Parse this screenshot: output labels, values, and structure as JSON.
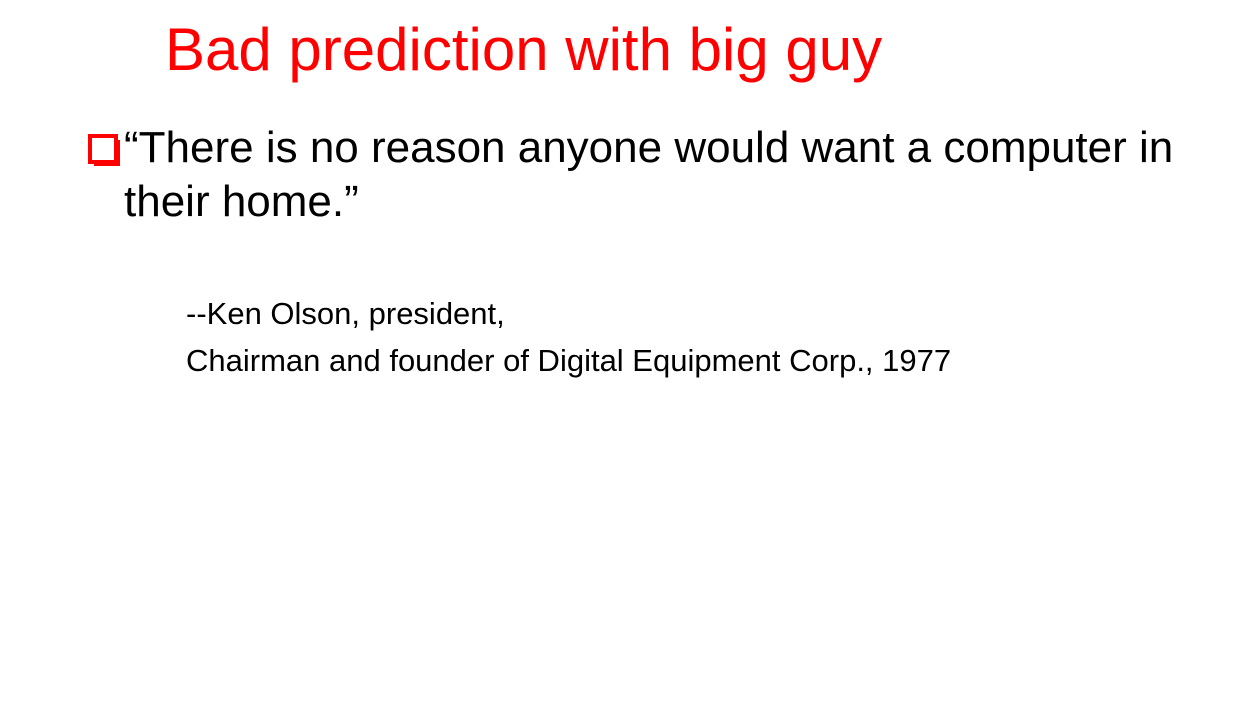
{
  "slide": {
    "title": "Bad prediction with big guy",
    "title_color": "#ff0000",
    "bullet": {
      "icon": "hollow-square-bullet-icon",
      "icon_color": "#ff0000",
      "quote": "“There is no reason anyone would want a computer in their home.”"
    },
    "attribution": {
      "line1": "--Ken Olson, president,",
      "line2": "Chairman and founder of Digital Equipment Corp., 1977"
    }
  }
}
